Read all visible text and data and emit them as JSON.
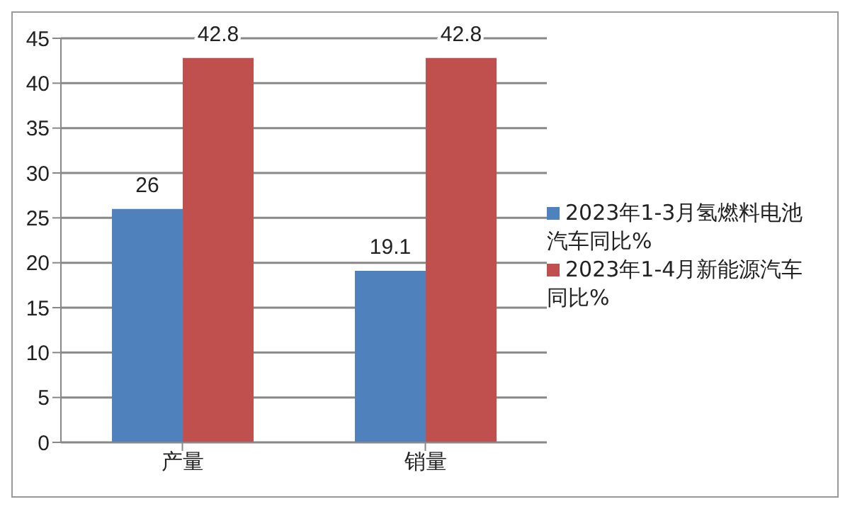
{
  "chart_data": {
    "type": "bar",
    "categories": [
      "产量",
      "销量"
    ],
    "series": [
      {
        "name": "2023年1-3月氢燃料电池汽车同比%",
        "color": "#4f81bd",
        "values": [
          26,
          19.1
        ]
      },
      {
        "name": "2023年1-4月新能源汽车同比%",
        "color": "#c0504d",
        "values": [
          42.8,
          42.8
        ]
      }
    ],
    "ylim": [
      0,
      45
    ],
    "yticks": [
      0,
      5,
      10,
      15,
      20,
      25,
      30,
      35,
      40,
      45
    ],
    "grid": "y",
    "legend": "right",
    "data_labels": true
  }
}
